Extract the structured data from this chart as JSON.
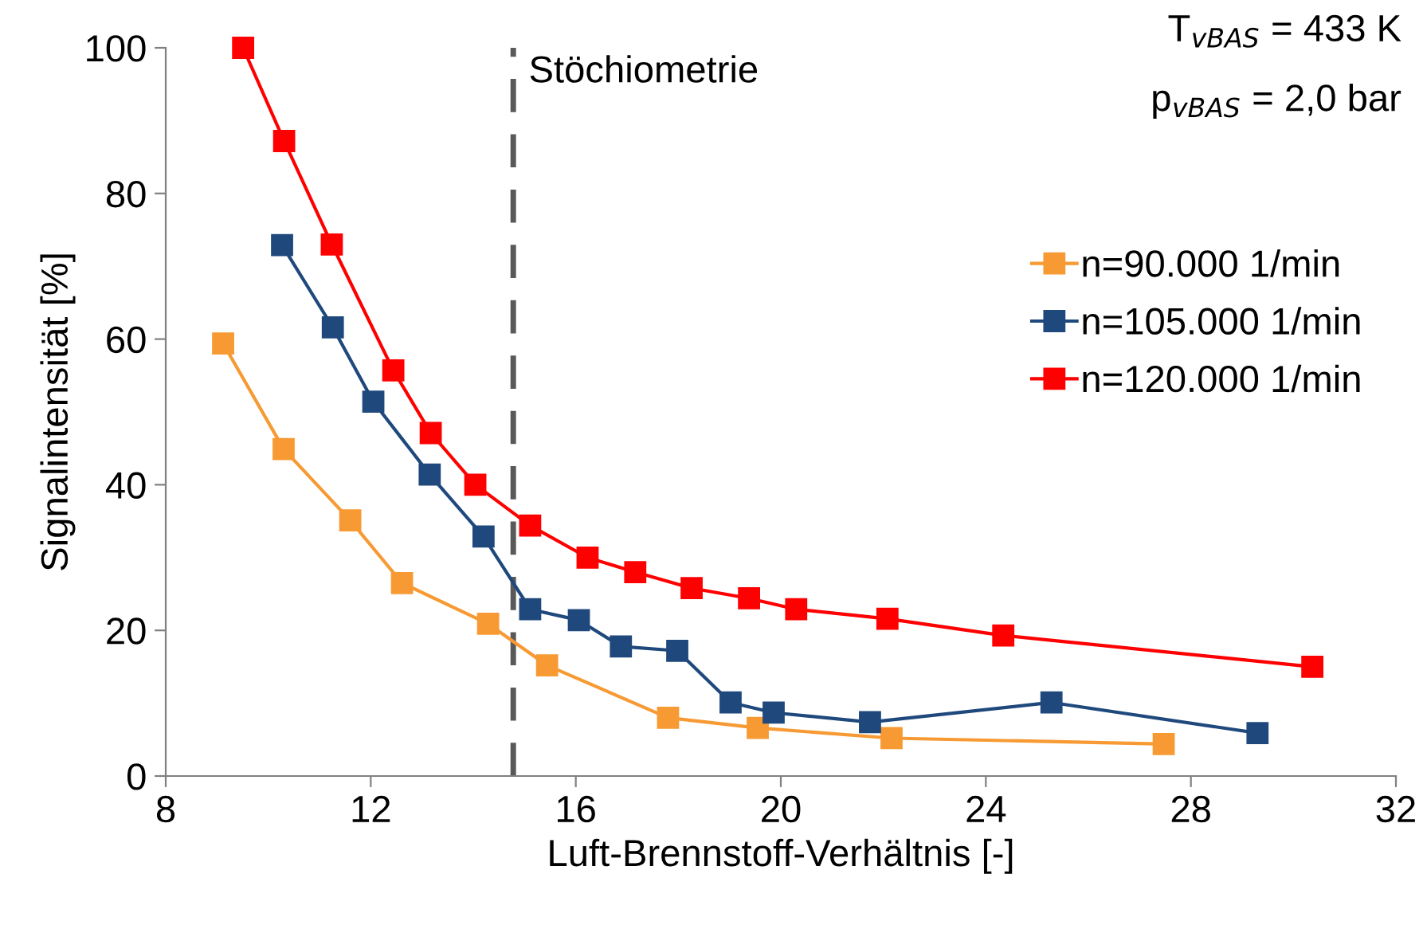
{
  "chart_data": {
    "type": "line",
    "xlabel": "Luft-Brennstoff-Verhältnis [-]",
    "ylabel": "Signalintensität [%]",
    "xlim": [
      8,
      32
    ],
    "xticks": [
      8,
      12,
      16,
      20,
      24,
      28,
      32
    ],
    "ylim": [
      0,
      100
    ],
    "yticks": [
      0,
      20,
      40,
      60,
      80,
      100
    ],
    "grid": false,
    "legend": "right",
    "marker": "square",
    "line_style": "solid",
    "series": [
      {
        "name": "n=90.000 1/min",
        "color": "#f79a33",
        "x": [
          9.12,
          10.3,
          11.6,
          12.61,
          14.29,
          15.44,
          17.8,
          19.55,
          22.16,
          27.47
        ],
        "values": [
          59.4,
          44.9,
          35.1,
          26.5,
          20.9,
          15.2,
          8.0,
          6.6,
          5.2,
          4.4
        ]
      },
      {
        "name": "n=105.000 1/min",
        "color": "#1f497d",
        "x": [
          10.27,
          11.26,
          12.05,
          13.15,
          14.2,
          15.11,
          16.06,
          16.88,
          17.98,
          19.02,
          19.86,
          21.74,
          25.28,
          29.3
        ],
        "values": [
          72.9,
          61.6,
          51.4,
          41.4,
          32.9,
          22.9,
          21.4,
          17.8,
          17.2,
          10.1,
          8.7,
          7.4,
          10.1,
          5.9
        ]
      },
      {
        "name": "n=120.000 1/min",
        "color": "#ff0000",
        "x": [
          9.51,
          10.31,
          11.24,
          12.44,
          13.17,
          14.04,
          15.11,
          16.23,
          17.16,
          18.26,
          19.38,
          20.3,
          22.08,
          24.34,
          30.37
        ],
        "values": [
          100,
          87.2,
          73.0,
          55.7,
          47.1,
          40.0,
          34.4,
          30.0,
          28.0,
          25.8,
          24.4,
          22.9,
          21.6,
          19.3,
          15.0
        ]
      }
    ],
    "ref_lines": [
      {
        "axis": "x",
        "value": 14.78,
        "label": "Stöchiometrie",
        "color": "#595959",
        "line_style": "dashed"
      }
    ],
    "annotations": [
      "T$_{vBAS}$ = 433 K",
      "p$_{vBAS}$ = 2,0 bar"
    ]
  }
}
